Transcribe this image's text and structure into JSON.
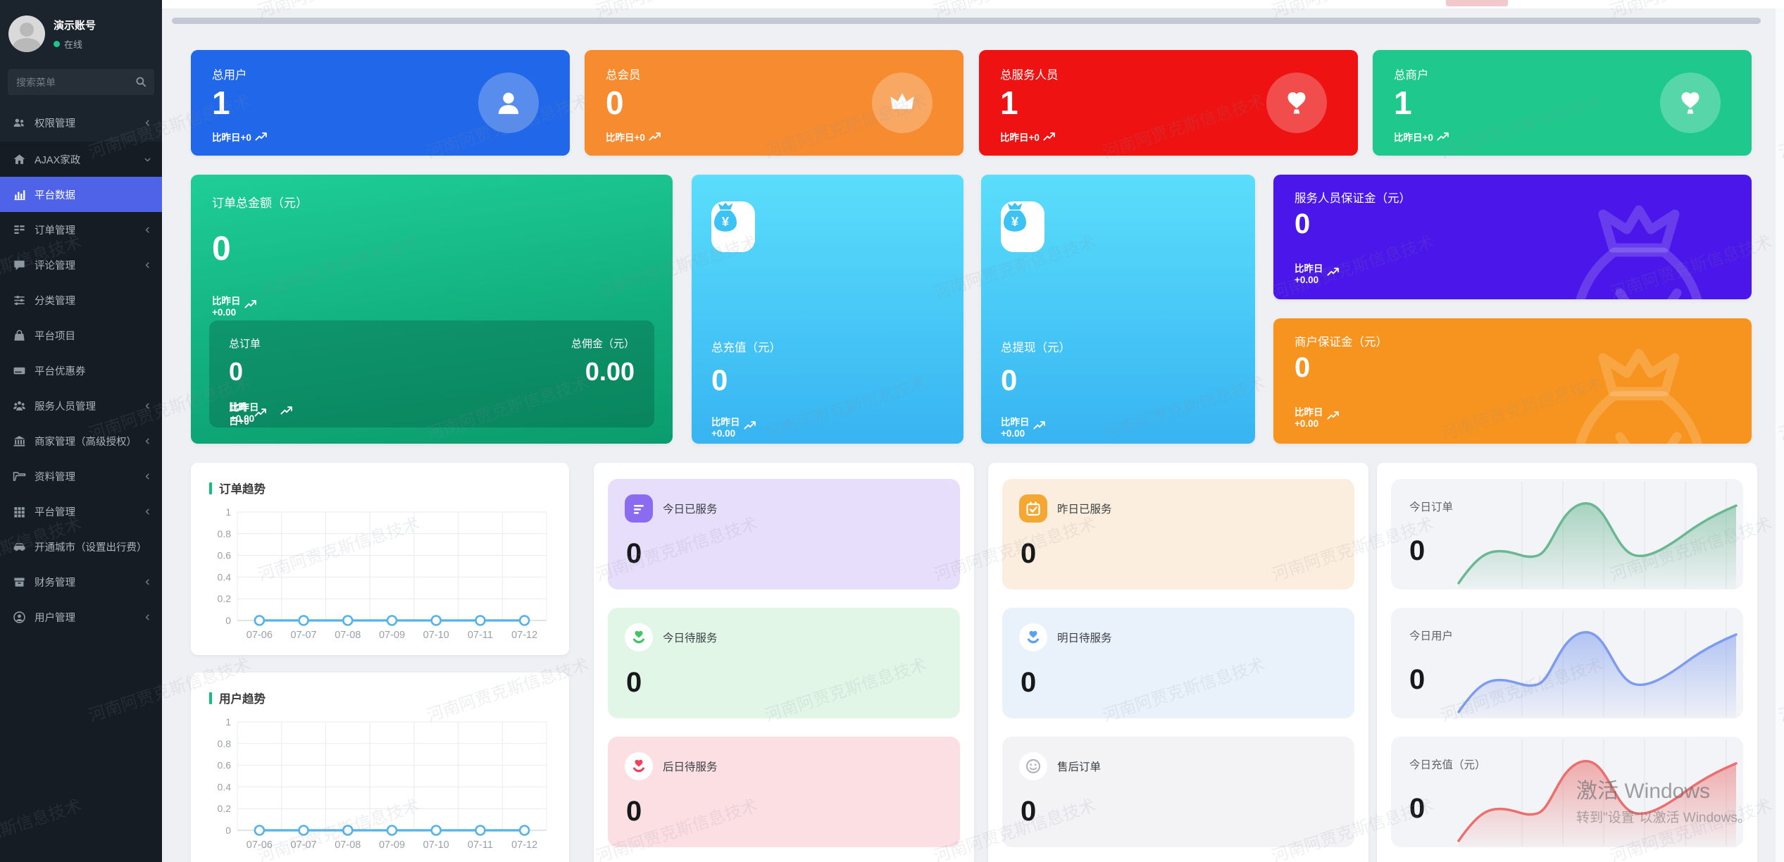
{
  "watermark": {
    "text": "河南阿贾克斯信息技术"
  },
  "os_watermark": {
    "line1": "激活 Windows",
    "line2": "转到\"设置\"以激活 Windows。"
  },
  "sidebar": {
    "profile": {
      "name": "演示账号",
      "status": "在线"
    },
    "search": {
      "placeholder": "搜索菜单"
    },
    "items": [
      {
        "icon": "users-icon",
        "label": "权限管理",
        "chevron": "left"
      },
      {
        "icon": "home-icon",
        "label": "AJAX家政",
        "chevron": "down",
        "expanded": true
      },
      {
        "icon": "bar-chart-icon",
        "label": "平台数据",
        "active": true
      },
      {
        "icon": "order-list-icon",
        "label": "订单管理",
        "chevron": "left"
      },
      {
        "icon": "comment-icon",
        "label": "评论管理",
        "chevron": "left"
      },
      {
        "icon": "sliders-icon",
        "label": "分类管理"
      },
      {
        "icon": "shopping-bag-icon",
        "label": "平台项目"
      },
      {
        "icon": "coupon-icon",
        "label": "平台优惠券"
      },
      {
        "icon": "team-icon",
        "label": "服务人员管理",
        "chevron": "left"
      },
      {
        "icon": "bank-icon",
        "label": "商家管理（高级授权）",
        "chevron": "left"
      },
      {
        "icon": "folder-icon",
        "label": "资料管理",
        "chevron": "left"
      },
      {
        "icon": "grid-icon",
        "label": "平台管理",
        "chevron": "left"
      },
      {
        "icon": "car-icon",
        "label": "开通城市（设置出行费）"
      },
      {
        "icon": "finance-icon",
        "label": "财务管理",
        "chevron": "left"
      },
      {
        "icon": "user-circle-icon",
        "label": "用户管理",
        "chevron": "left"
      }
    ]
  },
  "stat_cards": [
    {
      "title": "总用户",
      "value": "1",
      "delta": "比昨日+0",
      "icon": "person-icon",
      "color": "#2167e9"
    },
    {
      "title": "总会员",
      "value": "0",
      "delta": "比昨日+0",
      "icon": "crown-icon",
      "color": "#f78b30"
    },
    {
      "title": "总服务人员",
      "value": "1",
      "delta": "比昨日+0",
      "icon": "service-heart-icon",
      "color": "#ee1212"
    },
    {
      "title": "总商户",
      "value": "1",
      "delta": "比昨日+0",
      "icon": "service-heart-icon",
      "color": "#1fc98e"
    }
  ],
  "order_summary": {
    "title": "订单总金额（元）",
    "value": "0",
    "delta": "比昨日+0.00",
    "sub_left": {
      "title": "总订单",
      "value": "0",
      "delta": "比昨日+0"
    },
    "sub_right": {
      "title": "总佣金（元）",
      "value": "0.00",
      "delta": "比昨日+0.00"
    }
  },
  "recharge_card": {
    "title": "总充值（元）",
    "value": "0",
    "delta": "比昨日+0.00"
  },
  "withdraw_card": {
    "title": "总提现（元）",
    "value": "0",
    "delta": "比昨日+0.00"
  },
  "deposit_cards": [
    {
      "title": "服务人员保证金（元）",
      "value": "0",
      "delta": "比昨日+0.00",
      "color": "#4a16e9"
    },
    {
      "title": "商户保证金（元）",
      "value": "0",
      "delta": "比昨日+0.00",
      "color": "#f7941f"
    }
  ],
  "service_cards": [
    {
      "label": "今日已服务",
      "value": "0",
      "icon": "document-icon",
      "bg": "#e6defa",
      "icon_bg": "#8b6cf0",
      "icon_shape": "square",
      "icon_color": "#ffffff"
    },
    {
      "label": "今日待服务",
      "value": "0",
      "icon": "hands-heart-icon",
      "bg": "#e2f6e8",
      "icon_shape": "circle",
      "icon_color": "#41c463"
    },
    {
      "label": "后日待服务",
      "value": "0",
      "icon": "hands-heart-icon",
      "bg": "#fbdfe3",
      "icon_shape": "circle",
      "icon_color": "#f0415e"
    },
    {
      "label": "昨日已服务",
      "value": "0",
      "icon": "calendar-check-icon",
      "bg": "#fbeede",
      "icon_bg": "#f5a733",
      "icon_shape": "square",
      "icon_color": "#ffffff"
    },
    {
      "label": "明日待服务",
      "value": "0",
      "icon": "hands-heart-icon",
      "bg": "#e9f1fa",
      "icon_shape": "circle",
      "icon_color": "#5aa2f0"
    },
    {
      "label": "售后订单",
      "value": "0",
      "icon": "smiley-icon",
      "bg": "#f3f2f5",
      "icon_shape": "circle",
      "icon_color": "#b3b3ba"
    }
  ],
  "chart_data": [
    {
      "id": "order_trend",
      "type": "line",
      "title": "订单趋势",
      "x": [
        "07-06",
        "07-07",
        "07-08",
        "07-09",
        "07-10",
        "07-11",
        "07-12"
      ],
      "series": [
        {
          "name": "订单",
          "values": [
            0,
            0,
            0,
            0,
            0,
            0,
            0
          ]
        }
      ],
      "ylim": [
        0,
        1
      ],
      "yticks": [
        0,
        0.2,
        0.4,
        0.6,
        0.8,
        1
      ],
      "grid": true,
      "legend": false,
      "line_color": "#56b2ea",
      "marker": "open-circle"
    },
    {
      "id": "user_trend",
      "type": "line",
      "title": "用户趋势",
      "x": [
        "07-06",
        "07-07",
        "07-08",
        "07-09",
        "07-10",
        "07-11",
        "07-12"
      ],
      "series": [
        {
          "name": "用户",
          "values": [
            0,
            0,
            0,
            0,
            0,
            0,
            0
          ]
        }
      ],
      "ylim": [
        0,
        1
      ],
      "yticks": [
        0,
        0.2,
        0.4,
        0.6,
        0.8,
        1
      ],
      "grid": true,
      "legend": false,
      "line_color": "#56b2ea",
      "marker": "open-circle"
    },
    {
      "id": "today_orders_spark",
      "type": "area",
      "label": "今日订单",
      "value": "0",
      "color": "#6ab893",
      "decorative_wave": true
    },
    {
      "id": "today_users_spark",
      "type": "area",
      "label": "今日用户",
      "value": "0",
      "color": "#7d9cef",
      "decorative_wave": true
    },
    {
      "id": "today_recharge_spark",
      "type": "area",
      "label": "今日充值（元）",
      "value": "0",
      "color": "#ea6f6f",
      "decorative_wave": true
    }
  ]
}
